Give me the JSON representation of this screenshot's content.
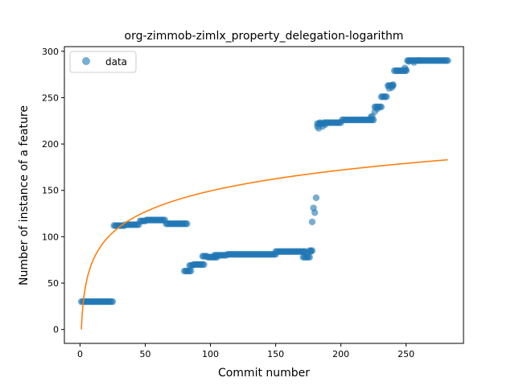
{
  "chart_data": {
    "type": "scatter",
    "title": "org-zimmob-zimlx_property_delegation-logarithm",
    "xlabel": "Commit number",
    "ylabel": "Number of instance of a feature",
    "xlim": [
      -12,
      294
    ],
    "ylim": [
      -15,
      305
    ],
    "xticks": [
      0,
      50,
      100,
      150,
      200,
      250
    ],
    "yticks": [
      0,
      50,
      100,
      150,
      200,
      250,
      300
    ],
    "grid": false,
    "legend": {
      "placement": "top-left",
      "entries": [
        "data"
      ]
    },
    "colors": {
      "data": "#1f77b4",
      "fit": "#ff7f0e"
    },
    "series": [
      {
        "name": "data",
        "style": "markers",
        "runs": [
          [
            1,
            25,
            30
          ],
          [
            26,
            34,
            112
          ],
          [
            35,
            45,
            113
          ],
          [
            46,
            50,
            117
          ],
          [
            51,
            65,
            118
          ],
          [
            66,
            82,
            114
          ],
          [
            80,
            85,
            63
          ],
          [
            84,
            86,
            69
          ],
          [
            87,
            95,
            70
          ],
          [
            94,
            97,
            79
          ],
          [
            98,
            105,
            78
          ],
          [
            103,
            112,
            80
          ],
          [
            113,
            150,
            81
          ],
          [
            150,
            173,
            84
          ],
          [
            171,
            176,
            78
          ],
          [
            176,
            178,
            85
          ],
          [
            182,
            186,
            222
          ],
          [
            187,
            200,
            223
          ],
          [
            201,
            225,
            226
          ],
          [
            226,
            230,
            240
          ],
          [
            231,
            235,
            251
          ],
          [
            236,
            240,
            263
          ],
          [
            241,
            250,
            279
          ],
          [
            251,
            282,
            290
          ]
        ],
        "extra_points": [
          [
            174,
            82
          ],
          [
            177,
            84
          ],
          [
            178,
            116
          ],
          [
            179,
            131
          ],
          [
            180,
            126
          ],
          [
            181,
            142
          ],
          [
            182,
            219
          ],
          [
            183,
            217
          ],
          [
            184,
            223
          ],
          [
            186,
            219
          ],
          [
            188,
            221
          ],
          [
            223,
            229
          ],
          [
            224,
            230
          ],
          [
            226,
            235
          ],
          [
            228,
            238
          ],
          [
            231,
            240
          ],
          [
            237,
            260
          ],
          [
            239,
            261
          ],
          [
            240,
            264
          ],
          [
            249,
            282
          ],
          [
            250,
            280
          ],
          [
            252,
            289
          ],
          [
            256,
            288
          ],
          [
            260,
            290
          ]
        ]
      },
      {
        "style": "line",
        "fit": "logarithmic",
        "x_start": 1,
        "x_end": 282,
        "y_start": 0,
        "y_end": 183
      }
    ]
  }
}
